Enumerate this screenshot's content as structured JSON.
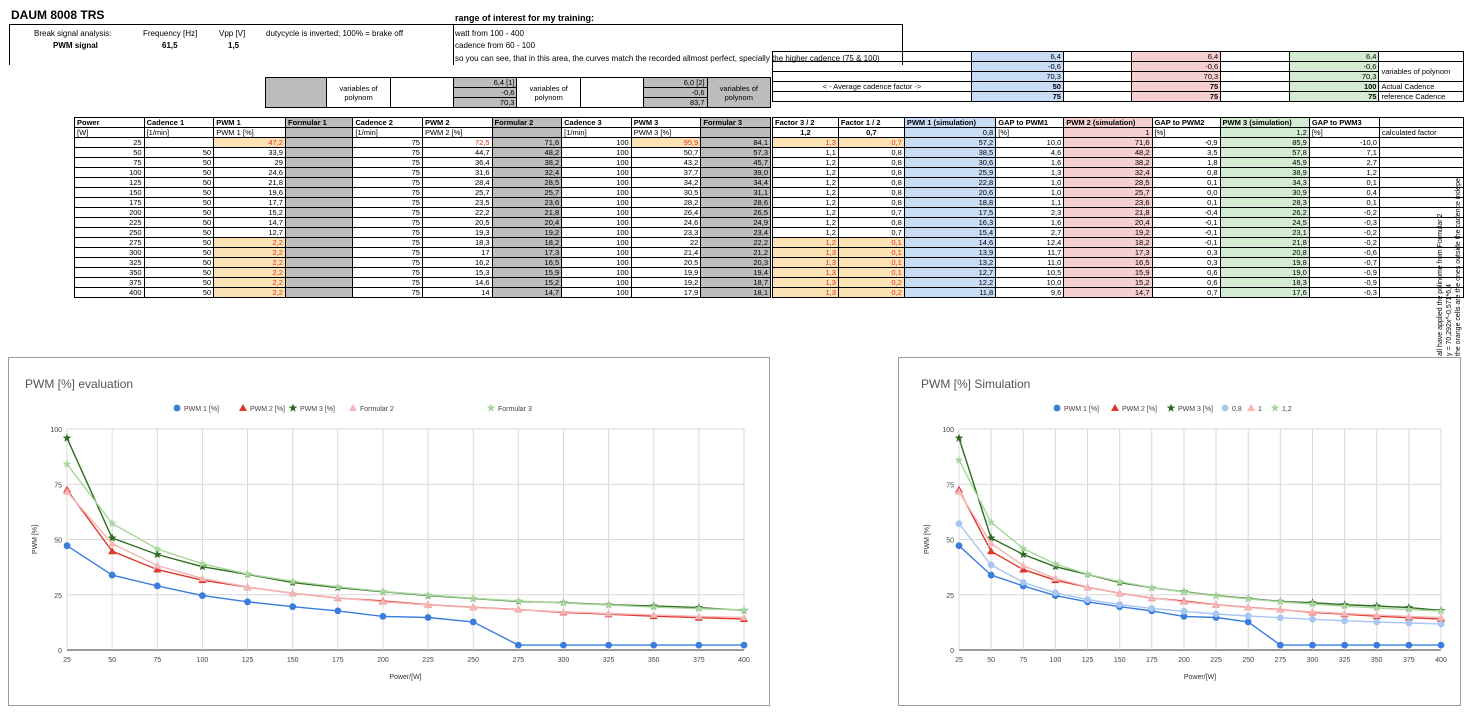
{
  "header": {
    "title": "DAUM 8008 TRS",
    "break_label": "Break signal analysis:",
    "freq_label": "Frequency [Hz]",
    "vpp_label": "Vpp [V]",
    "duty_note": "dutycycle is inverted; 100% = brake off",
    "pwm_label": "PWM signal",
    "freq_value": "61,5",
    "vpp_value": "1,5",
    "range_title": "range of interest for my training:",
    "range_watt": "watt from 100 - 400",
    "range_cadence": "cadence from 60 - 100",
    "range_note": "so you can see, that in this area, the curves match the recorded allmost perfect, specially the higher cadence (75 & 100)"
  },
  "labels": {
    "vars_polynom": "variables of polynom",
    "avg_cadence": "< - Average cadence factor ->",
    "actual_cadence": "Actual Cadence",
    "reference_cadence": "reference Cadence",
    "calculated_factor": "calculated factor",
    "side_note_1": "all have applied the polinome from Formular 2",
    "side_note_2": "y = 70,292x^-0,571*6,4",
    "side_note_3": "the orange cells are the ones outside the cadence indepe"
  },
  "poly": {
    "f2": [
      "6,4 [1]",
      "-0,6",
      "70,3"
    ],
    "f3": [
      "6,0 [2]",
      "-0,6",
      "83,7"
    ],
    "sim1": [
      "6,4",
      "-0,6",
      "70,3",
      "50",
      "75"
    ],
    "sim2": [
      "6,4",
      "-0,6",
      "70,3",
      "75",
      "75"
    ],
    "sim3": [
      "6,4",
      "-0,6",
      "70,3",
      "100",
      "75"
    ]
  },
  "columns": {
    "left": [
      "Power",
      "Cadence 1",
      "PWM 1",
      "Formular 1",
      "Cadence 2",
      "PWM 2",
      "Formular 2",
      "Cadence 3",
      "PWM 3",
      "Formular 3"
    ],
    "left_units": [
      "[W]",
      "[1/min]",
      "PWM 1 [%]",
      "",
      "[1/min]",
      "PWM 2 [%]",
      "",
      "[1/min]",
      "PWM 3 [%]",
      ""
    ],
    "right": [
      "Factor 3 / 2",
      "Factor 1 / 2",
      "PWM 1 (simulation)",
      "GAP to PWM1",
      "PWM 2 (simulation)",
      "GAP to PWM2",
      "PWM 3  (simulation)",
      "GAP to PWM3"
    ],
    "right_units": [
      "1,2",
      "0,7",
      "0,8",
      "[%]",
      "1",
      "[%]",
      "1,2",
      "[%]"
    ]
  },
  "rows": [
    [
      "25",
      "",
      "47,2",
      "",
      "75",
      "72,5",
      "71,6",
      "100",
      "95,9",
      "84,1",
      "1,3",
      "0,7",
      "57,2",
      "10,0",
      "71,6",
      "-0,9",
      "85,9",
      "-10,0"
    ],
    [
      "50",
      "50",
      "33,9",
      "",
      "75",
      "44,7",
      "48,2",
      "100",
      "50,7",
      "57,3",
      "1,1",
      "0,8",
      "38,5",
      "4,6",
      "48,2",
      "3,5",
      "57,8",
      "7,1"
    ],
    [
      "75",
      "50",
      "29",
      "",
      "75",
      "36,4",
      "38,2",
      "100",
      "43,2",
      "45,7",
      "1,2",
      "0,8",
      "30,6",
      "1,6",
      "38,2",
      "1,8",
      "45,9",
      "2,7"
    ],
    [
      "100",
      "50",
      "24,6",
      "",
      "75",
      "31,6",
      "32,4",
      "100",
      "37,7",
      "39,0",
      "1,2",
      "0,8",
      "25,9",
      "1,3",
      "32,4",
      "0,8",
      "38,9",
      "1,2"
    ],
    [
      "125",
      "50",
      "21,8",
      "",
      "75",
      "28,4",
      "28,5",
      "100",
      "34,2",
      "34,4",
      "1,2",
      "0,8",
      "22,8",
      "1,0",
      "28,5",
      "0,1",
      "34,3",
      "0,1"
    ],
    [
      "150",
      "50",
      "19,6",
      "",
      "75",
      "25,7",
      "25,7",
      "100",
      "30,5",
      "31,1",
      "1,2",
      "0,8",
      "20,6",
      "1,0",
      "25,7",
      "0,0",
      "30,9",
      "0,4"
    ],
    [
      "175",
      "50",
      "17,7",
      "",
      "75",
      "23,5",
      "23,6",
      "100",
      "28,2",
      "28,6",
      "1,2",
      "0,8",
      "18,8",
      "1,1",
      "23,6",
      "0,1",
      "28,3",
      "0,1"
    ],
    [
      "200",
      "50",
      "15,2",
      "",
      "75",
      "22,2",
      "21,8",
      "100",
      "26,4",
      "26,5",
      "1,2",
      "0,7",
      "17,5",
      "2,3",
      "21,8",
      "-0,4",
      "26,2",
      "-0,2"
    ],
    [
      "225",
      "50",
      "14,7",
      "",
      "75",
      "20,5",
      "20,4",
      "100",
      "24,6",
      "24,9",
      "1,2",
      "0,8",
      "16,3",
      "1,6",
      "20,4",
      "-0,1",
      "24,5",
      "-0,3"
    ],
    [
      "250",
      "50",
      "12,7",
      "",
      "75",
      "19,3",
      "19,2",
      "100",
      "23,3",
      "23,4",
      "1,2",
      "0,7",
      "15,4",
      "2,7",
      "19,2",
      "-0,1",
      "23,1",
      "-0,2"
    ],
    [
      "275",
      "50",
      "2,2",
      "",
      "75",
      "18,3",
      "18,2",
      "100",
      "22",
      "22,2",
      "1,2",
      "0,1",
      "14,6",
      "12,4",
      "18,2",
      "-0,1",
      "21,8",
      "-0,2"
    ],
    [
      "300",
      "50",
      "2,2",
      "",
      "75",
      "17",
      "17,3",
      "100",
      "21,4",
      "21,2",
      "1,3",
      "0,1",
      "13,9",
      "11,7",
      "17,3",
      "0,3",
      "20,8",
      "-0,6"
    ],
    [
      "325",
      "50",
      "2,2",
      "",
      "75",
      "16,2",
      "16,5",
      "100",
      "20,5",
      "20,3",
      "1,3",
      "0,1",
      "13,2",
      "11,0",
      "16,5",
      "0,3",
      "19,8",
      "-0,7"
    ],
    [
      "350",
      "50",
      "2,2",
      "",
      "75",
      "15,3",
      "15,9",
      "100",
      "19,9",
      "19,4",
      "1,3",
      "0,1",
      "12,7",
      "10,5",
      "15,9",
      "0,6",
      "19,0",
      "-0,9"
    ],
    [
      "375",
      "50",
      "2,2",
      "",
      "75",
      "14,6",
      "15,2",
      "100",
      "19,2",
      "18,7",
      "1,3",
      "0,2",
      "12,2",
      "10,0",
      "15,2",
      "0,6",
      "18,3",
      "-0,9"
    ],
    [
      "400",
      "50",
      "2,2",
      "",
      "75",
      "14",
      "14,7",
      "100",
      "17,9",
      "18,1",
      "1,3",
      "0,2",
      "11,8",
      "9,6",
      "14,7",
      "0,7",
      "17,6",
      "-0,3"
    ]
  ],
  "chart_data": [
    {
      "type": "line",
      "title": "PWM [%] evaluation",
      "xlabel": "Power/[W]",
      "ylabel": "PWM [%]",
      "x": [
        25,
        50,
        75,
        100,
        125,
        150,
        175,
        200,
        225,
        250,
        275,
        300,
        325,
        350,
        375,
        400
      ],
      "xlim": [
        25,
        400
      ],
      "ylim": [
        0,
        100
      ],
      "yticks": [
        0,
        25,
        50,
        75,
        100
      ],
      "grid": true,
      "legend": "top",
      "series": [
        {
          "name": "PWM 1 [%]",
          "color": "#3b7ddd",
          "marker": "circle",
          "values": [
            47.2,
            33.9,
            29,
            24.6,
            21.8,
            19.6,
            17.7,
            15.2,
            14.7,
            12.7,
            2.2,
            2.2,
            2.2,
            2.2,
            2.2,
            2.2
          ]
        },
        {
          "name": "PWM 2 [%]",
          "color": "#e0362c",
          "marker": "triangle",
          "values": [
            72.5,
            44.7,
            36.4,
            31.6,
            28.4,
            25.7,
            23.5,
            22.2,
            20.5,
            19.3,
            18.3,
            17,
            16.2,
            15.3,
            14.6,
            14
          ]
        },
        {
          "name": "PWM 3 [%]",
          "color": "#2e6b1f",
          "marker": "star",
          "values": [
            95.9,
            50.7,
            43.2,
            37.7,
            34.2,
            30.5,
            28.2,
            26.4,
            24.6,
            23.3,
            22,
            21.4,
            20.5,
            19.9,
            19.2,
            17.9
          ]
        },
        {
          "name": "Formular 2",
          "color": "#f4b6b6",
          "marker": "triangle",
          "values": [
            71.6,
            48.2,
            38.2,
            32.4,
            28.5,
            25.7,
            23.6,
            21.8,
            20.4,
            19.2,
            18.2,
            17.3,
            16.5,
            15.9,
            15.2,
            14.7
          ]
        },
        {
          "name": "Formular 3",
          "color": "#a8d69d",
          "marker": "star",
          "values": [
            84.1,
            57.3,
            45.7,
            39.0,
            34.4,
            31.1,
            28.6,
            26.5,
            24.9,
            23.4,
            22.2,
            21.2,
            20.3,
            19.4,
            18.7,
            18.1
          ]
        }
      ]
    },
    {
      "type": "line",
      "title": "PWM [%] Simulation",
      "xlabel": "Power/[W]",
      "ylabel": "PWM [%]",
      "x": [
        25,
        50,
        75,
        100,
        125,
        150,
        175,
        200,
        225,
        250,
        275,
        300,
        325,
        350,
        375,
        400
      ],
      "xlim": [
        25,
        400
      ],
      "ylim": [
        0,
        100
      ],
      "yticks": [
        0,
        25,
        50,
        75,
        100
      ],
      "grid": true,
      "legend": "top",
      "series": [
        {
          "name": "PWM 1 [%]",
          "color": "#3b7ddd",
          "marker": "circle",
          "values": [
            47.2,
            33.9,
            29,
            24.6,
            21.8,
            19.6,
            17.7,
            15.2,
            14.7,
            12.7,
            2.2,
            2.2,
            2.2,
            2.2,
            2.2,
            2.2
          ]
        },
        {
          "name": "PWM 2 [%]",
          "color": "#e0362c",
          "marker": "triangle",
          "values": [
            72.5,
            44.7,
            36.4,
            31.6,
            28.4,
            25.7,
            23.5,
            22.2,
            20.5,
            19.3,
            18.3,
            17,
            16.2,
            15.3,
            14.6,
            14
          ]
        },
        {
          "name": "PWM 3 [%]",
          "color": "#2e6b1f",
          "marker": "star",
          "values": [
            95.9,
            50.7,
            43.2,
            37.7,
            34.2,
            30.5,
            28.2,
            26.4,
            24.6,
            23.3,
            22,
            21.4,
            20.5,
            19.9,
            19.2,
            17.9
          ]
        },
        {
          "name": "0,8",
          "color": "#a9c6f1",
          "marker": "circle",
          "values": [
            57.2,
            38.5,
            30.6,
            25.9,
            22.8,
            20.6,
            18.8,
            17.5,
            16.3,
            15.4,
            14.6,
            13.9,
            13.2,
            12.7,
            12.2,
            11.8
          ]
        },
        {
          "name": "1",
          "color": "#f4b6b6",
          "marker": "triangle",
          "values": [
            71.6,
            48.2,
            38.2,
            32.4,
            28.5,
            25.7,
            23.6,
            21.8,
            20.4,
            19.2,
            18.2,
            17.3,
            16.5,
            15.9,
            15.2,
            14.7
          ]
        },
        {
          "name": "1,2",
          "color": "#a8d69d",
          "marker": "star",
          "values": [
            85.9,
            57.8,
            45.9,
            38.9,
            34.3,
            30.9,
            28.3,
            26.2,
            24.5,
            23.1,
            21.8,
            20.8,
            19.8,
            19.0,
            18.3,
            17.6
          ]
        }
      ]
    }
  ]
}
